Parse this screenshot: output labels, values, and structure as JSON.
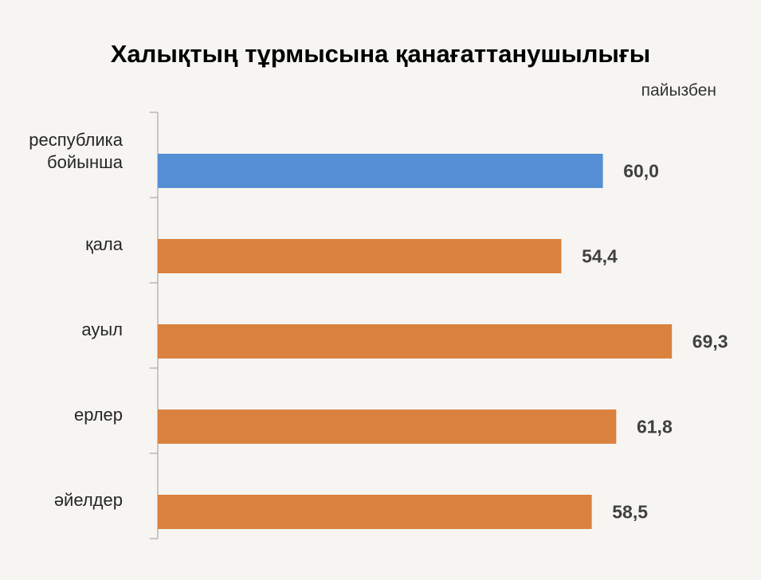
{
  "chart_data": {
    "type": "bar",
    "orientation": "horizontal",
    "title": "Халықтың тұрмысына қанағаттанушылығы",
    "unit_label": "пайызбен",
    "categories": [
      [
        "республика",
        "бойынша"
      ],
      [
        "қала"
      ],
      [
        "ауыл"
      ],
      [
        "ерлер"
      ],
      [
        "әйелдер"
      ]
    ],
    "values": [
      60.0,
      54.4,
      69.3,
      61.8,
      58.5
    ],
    "value_labels": [
      "60,0",
      "54,4",
      "69,3",
      "61,8",
      "58,5"
    ],
    "colors": [
      "#558ed5",
      "#d9823f",
      "#d9823f",
      "#d9823f",
      "#d9823f"
    ],
    "axis_color": "#a6a6a6",
    "grid": false,
    "legend": "none"
  }
}
